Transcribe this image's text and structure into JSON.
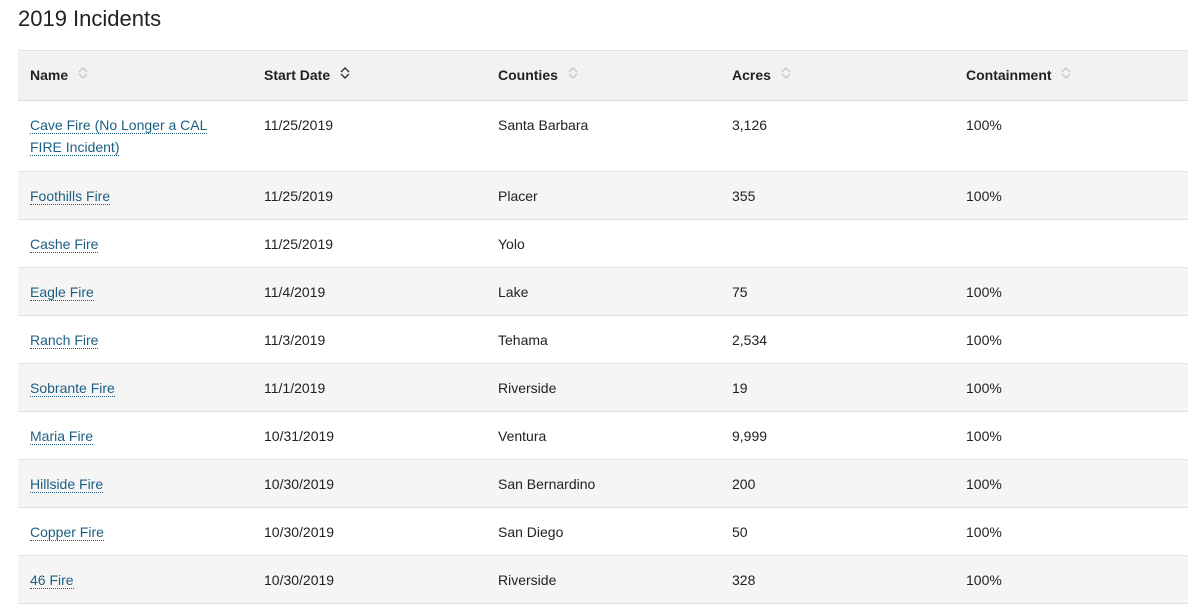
{
  "page": {
    "title": "2019 Incidents"
  },
  "table": {
    "columns": [
      {
        "label": "Name",
        "sort": "none"
      },
      {
        "label": "Start Date",
        "sort": "active"
      },
      {
        "label": "Counties",
        "sort": "none"
      },
      {
        "label": "Acres",
        "sort": "none"
      },
      {
        "label": "Containment",
        "sort": "none"
      }
    ],
    "rows": [
      {
        "name": "Cave Fire (No Longer a CAL FIRE Incident)",
        "start_date": "11/25/2019",
        "counties": "Santa Barbara",
        "acres": "3,126",
        "containment": "100%"
      },
      {
        "name": "Foothills Fire",
        "start_date": "11/25/2019",
        "counties": "Placer",
        "acres": "355",
        "containment": "100%"
      },
      {
        "name": "Cashe Fire",
        "start_date": "11/25/2019",
        "counties": "Yolo",
        "acres": "",
        "containment": ""
      },
      {
        "name": "Eagle Fire",
        "start_date": "11/4/2019",
        "counties": "Lake",
        "acres": "75",
        "containment": "100%"
      },
      {
        "name": "Ranch Fire",
        "start_date": "11/3/2019",
        "counties": "Tehama",
        "acres": "2,534",
        "containment": "100%"
      },
      {
        "name": "Sobrante Fire",
        "start_date": "11/1/2019",
        "counties": "Riverside",
        "acres": "19",
        "containment": "100%"
      },
      {
        "name": "Maria Fire",
        "start_date": "10/31/2019",
        "counties": "Ventura",
        "acres": "9,999",
        "containment": "100%"
      },
      {
        "name": "Hillside Fire",
        "start_date": "10/30/2019",
        "counties": "San Bernardino",
        "acres": "200",
        "containment": "100%"
      },
      {
        "name": "Copper Fire",
        "start_date": "10/30/2019",
        "counties": "San Diego",
        "acres": "50",
        "containment": "100%"
      },
      {
        "name": "46 Fire",
        "start_date": "10/30/2019",
        "counties": "Riverside",
        "acres": "328",
        "containment": "100%"
      }
    ]
  },
  "colors": {
    "link": "#1b5f83",
    "header_bg": "#f2f2f2",
    "stripe_bg": "#f5f5f5"
  }
}
